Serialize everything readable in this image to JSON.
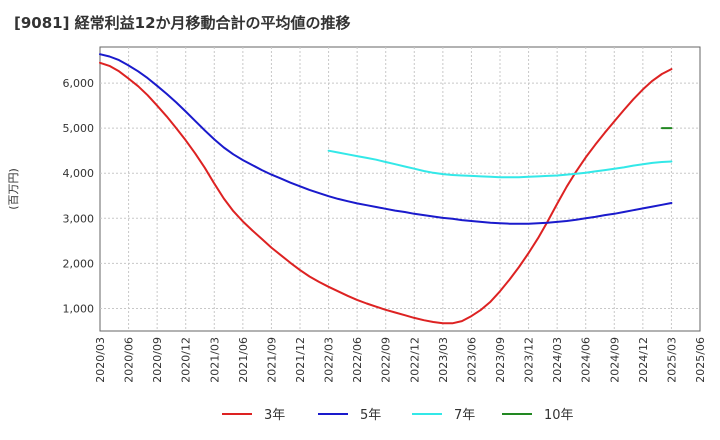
{
  "chart_data": {
    "type": "line",
    "title": "[9081]  経常利益12か月移動合計の平均値の推移",
    "xlabel": "",
    "ylabel": "(百万円)",
    "ylim": [
      500,
      6800
    ],
    "yticks": [
      1000,
      2000,
      3000,
      4000,
      5000,
      6000
    ],
    "ytick_labels": [
      "1,000",
      "2,000",
      "3,000",
      "4,000",
      "5,000",
      "6,000"
    ],
    "xticks": [
      "2020/03",
      "2020/06",
      "2020/09",
      "2020/12",
      "2021/03",
      "2021/06",
      "2021/09",
      "2021/12",
      "2022/03",
      "2022/06",
      "2022/09",
      "2022/12",
      "2023/03",
      "2023/06",
      "2023/09",
      "2023/12",
      "2024/03",
      "2024/06",
      "2024/09",
      "2024/12",
      "2025/03",
      "2025/06"
    ],
    "grid": true,
    "legend_position": "bottom",
    "series": [
      {
        "name": "3年",
        "color": "#dd2222",
        "points": [
          [
            "2020/03",
            6450
          ],
          [
            "2020/04",
            6380
          ],
          [
            "2020/05",
            6260
          ],
          [
            "2020/06",
            6100
          ],
          [
            "2020/07",
            5930
          ],
          [
            "2020/08",
            5730
          ],
          [
            "2020/09",
            5500
          ],
          [
            "2020/10",
            5260
          ],
          [
            "2020/11",
            5000
          ],
          [
            "2020/12",
            4730
          ],
          [
            "2021/01",
            4440
          ],
          [
            "2021/02",
            4120
          ],
          [
            "2021/03",
            3770
          ],
          [
            "2021/04",
            3440
          ],
          [
            "2021/05",
            3160
          ],
          [
            "2021/06",
            2930
          ],
          [
            "2021/07",
            2730
          ],
          [
            "2021/08",
            2540
          ],
          [
            "2021/09",
            2350
          ],
          [
            "2021/10",
            2180
          ],
          [
            "2021/11",
            2010
          ],
          [
            "2021/12",
            1850
          ],
          [
            "2022/01",
            1710
          ],
          [
            "2022/02",
            1590
          ],
          [
            "2022/03",
            1480
          ],
          [
            "2022/04",
            1380
          ],
          [
            "2022/05",
            1280
          ],
          [
            "2022/06",
            1190
          ],
          [
            "2022/07",
            1110
          ],
          [
            "2022/08",
            1040
          ],
          [
            "2022/09",
            970
          ],
          [
            "2022/10",
            910
          ],
          [
            "2022/11",
            850
          ],
          [
            "2022/12",
            790
          ],
          [
            "2023/01",
            740
          ],
          [
            "2023/02",
            700
          ],
          [
            "2023/03",
            670
          ],
          [
            "2023/04",
            670
          ],
          [
            "2023/05",
            720
          ],
          [
            "2023/06",
            830
          ],
          [
            "2023/07",
            970
          ],
          [
            "2023/08",
            1150
          ],
          [
            "2023/09",
            1380
          ],
          [
            "2023/10",
            1640
          ],
          [
            "2023/11",
            1920
          ],
          [
            "2023/12",
            2230
          ],
          [
            "2024/01",
            2560
          ],
          [
            "2024/02",
            2930
          ],
          [
            "2024/03",
            3320
          ],
          [
            "2024/04",
            3700
          ],
          [
            "2024/05",
            4040
          ],
          [
            "2024/06",
            4350
          ],
          [
            "2024/07",
            4630
          ],
          [
            "2024/08",
            4900
          ],
          [
            "2024/09",
            5150
          ],
          [
            "2024/10",
            5400
          ],
          [
            "2024/11",
            5640
          ],
          [
            "2024/12",
            5860
          ],
          [
            "2025/01",
            6050
          ],
          [
            "2025/02",
            6200
          ],
          [
            "2025/03",
            6310
          ]
        ]
      },
      {
        "name": "5年",
        "color": "#1a1acc",
        "points": [
          [
            "2020/03",
            6640
          ],
          [
            "2020/04",
            6590
          ],
          [
            "2020/05",
            6510
          ],
          [
            "2020/06",
            6390
          ],
          [
            "2020/07",
            6260
          ],
          [
            "2020/08",
            6110
          ],
          [
            "2020/09",
            5940
          ],
          [
            "2020/10",
            5760
          ],
          [
            "2020/11",
            5570
          ],
          [
            "2020/12",
            5370
          ],
          [
            "2021/01",
            5160
          ],
          [
            "2021/02",
            4950
          ],
          [
            "2021/03",
            4750
          ],
          [
            "2021/04",
            4570
          ],
          [
            "2021/05",
            4420
          ],
          [
            "2021/06",
            4290
          ],
          [
            "2021/07",
            4180
          ],
          [
            "2021/08",
            4070
          ],
          [
            "2021/09",
            3970
          ],
          [
            "2021/10",
            3880
          ],
          [
            "2021/11",
            3790
          ],
          [
            "2021/12",
            3710
          ],
          [
            "2022/01",
            3630
          ],
          [
            "2022/02",
            3560
          ],
          [
            "2022/03",
            3490
          ],
          [
            "2022/04",
            3430
          ],
          [
            "2022/05",
            3380
          ],
          [
            "2022/06",
            3330
          ],
          [
            "2022/07",
            3290
          ],
          [
            "2022/08",
            3250
          ],
          [
            "2022/09",
            3210
          ],
          [
            "2022/10",
            3170
          ],
          [
            "2022/11",
            3140
          ],
          [
            "2022/12",
            3100
          ],
          [
            "2023/01",
            3070
          ],
          [
            "2023/02",
            3040
          ],
          [
            "2023/03",
            3010
          ],
          [
            "2023/04",
            2990
          ],
          [
            "2023/05",
            2960
          ],
          [
            "2023/06",
            2940
          ],
          [
            "2023/07",
            2920
          ],
          [
            "2023/08",
            2900
          ],
          [
            "2023/09",
            2890
          ],
          [
            "2023/10",
            2880
          ],
          [
            "2023/11",
            2880
          ],
          [
            "2023/12",
            2880
          ],
          [
            "2024/01",
            2890
          ],
          [
            "2024/02",
            2900
          ],
          [
            "2024/03",
            2920
          ],
          [
            "2024/04",
            2940
          ],
          [
            "2024/05",
            2970
          ],
          [
            "2024/06",
            3000
          ],
          [
            "2024/07",
            3030
          ],
          [
            "2024/08",
            3070
          ],
          [
            "2024/09",
            3100
          ],
          [
            "2024/10",
            3140
          ],
          [
            "2024/11",
            3180
          ],
          [
            "2024/12",
            3220
          ],
          [
            "2025/01",
            3260
          ],
          [
            "2025/02",
            3300
          ],
          [
            "2025/03",
            3340
          ]
        ]
      },
      {
        "name": "7年",
        "color": "#33e8e8",
        "points": [
          [
            "2022/03",
            4500
          ],
          [
            "2022/04",
            4460
          ],
          [
            "2022/05",
            4420
          ],
          [
            "2022/06",
            4380
          ],
          [
            "2022/07",
            4340
          ],
          [
            "2022/08",
            4300
          ],
          [
            "2022/09",
            4250
          ],
          [
            "2022/10",
            4200
          ],
          [
            "2022/11",
            4150
          ],
          [
            "2022/12",
            4100
          ],
          [
            "2023/01",
            4050
          ],
          [
            "2023/02",
            4010
          ],
          [
            "2023/03",
            3980
          ],
          [
            "2023/04",
            3960
          ],
          [
            "2023/05",
            3950
          ],
          [
            "2023/06",
            3940
          ],
          [
            "2023/07",
            3930
          ],
          [
            "2023/08",
            3920
          ],
          [
            "2023/09",
            3910
          ],
          [
            "2023/10",
            3910
          ],
          [
            "2023/11",
            3910
          ],
          [
            "2023/12",
            3920
          ],
          [
            "2024/01",
            3930
          ],
          [
            "2024/02",
            3940
          ],
          [
            "2024/03",
            3950
          ],
          [
            "2024/04",
            3970
          ],
          [
            "2024/05",
            3990
          ],
          [
            "2024/06",
            4010
          ],
          [
            "2024/07",
            4040
          ],
          [
            "2024/08",
            4070
          ],
          [
            "2024/09",
            4100
          ],
          [
            "2024/10",
            4130
          ],
          [
            "2024/11",
            4170
          ],
          [
            "2024/12",
            4200
          ],
          [
            "2025/01",
            4230
          ],
          [
            "2025/02",
            4250
          ],
          [
            "2025/03",
            4260
          ]
        ]
      },
      {
        "name": "10年",
        "color": "#228822",
        "points": [
          [
            "2025/02",
            5000
          ],
          [
            "2025/03",
            5000
          ]
        ]
      }
    ]
  }
}
